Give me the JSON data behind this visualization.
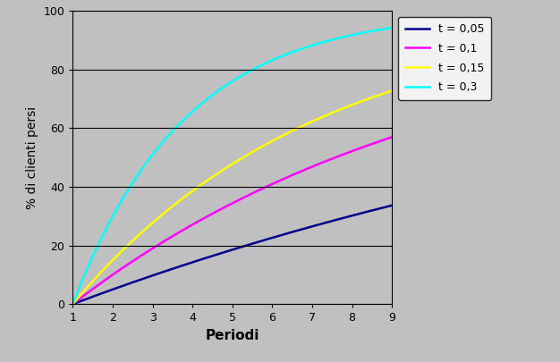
{
  "title": "",
  "xlabel": "Periodi",
  "ylabel": "% di clienti persi",
  "xlabel_fontsize": 11,
  "ylabel_fontsize": 10,
  "xlim": [
    1,
    9
  ],
  "ylim": [
    0,
    100
  ],
  "xticks": [
    1,
    2,
    3,
    4,
    5,
    6,
    7,
    8,
    9
  ],
  "yticks": [
    0,
    20,
    40,
    60,
    80,
    100
  ],
  "series": [
    {
      "t": 0.05,
      "color": "#00008B",
      "label": "t = 0,05"
    },
    {
      "t": 0.1,
      "color": "#FF00FF",
      "label": "t = 0,1"
    },
    {
      "t": 0.15,
      "color": "#FFFF00",
      "label": "t = 0,15"
    },
    {
      "t": 0.3,
      "color": "#00FFFF",
      "label": "t = 0,3"
    }
  ],
  "background_color": "#C0C0C0",
  "plot_bg_color": "#C0C0C0",
  "legend_bg": "#FFFFFF",
  "grid_color": "#000000",
  "linewidth": 1.8,
  "fig_width": 6.26,
  "fig_height": 4.05,
  "fig_dpi": 100
}
